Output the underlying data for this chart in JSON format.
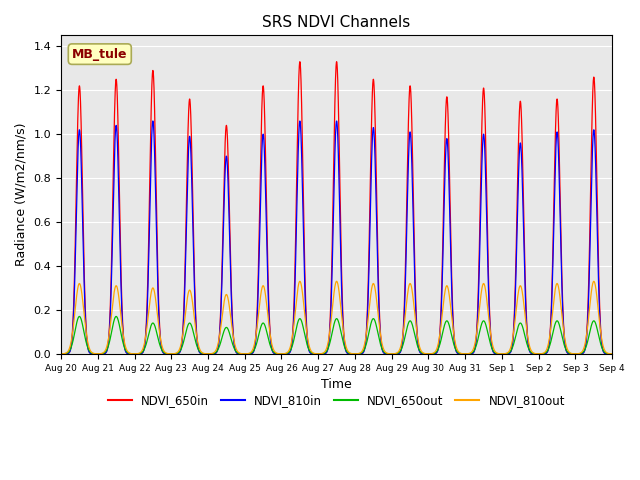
{
  "title": "SRS NDVI Channels",
  "xlabel": "Time",
  "ylabel": "Radiance (W/m2/nm/s)",
  "ylim": [
    0.0,
    1.45
  ],
  "yticks": [
    0.0,
    0.2,
    0.4,
    0.6,
    0.8,
    1.0,
    1.2,
    1.4
  ],
  "num_days": 16,
  "annotation_text": "MB_tule",
  "annotation_color": "#8B0000",
  "annotation_bg": "#FFFFC0",
  "colors": {
    "NDVI_650in": "#FF0000",
    "NDVI_810in": "#0000FF",
    "NDVI_650out": "#00BB00",
    "NDVI_810out": "#FFA500"
  },
  "peak_650in": [
    1.22,
    1.25,
    1.29,
    1.16,
    1.04,
    1.22,
    1.33,
    1.33,
    1.25,
    1.22,
    1.17,
    1.21,
    1.15,
    1.16,
    1.26
  ],
  "peak_810in": [
    1.02,
    1.04,
    1.06,
    0.99,
    0.9,
    1.0,
    1.06,
    1.06,
    1.03,
    1.01,
    0.98,
    1.0,
    0.96,
    1.01,
    1.02
  ],
  "peak_650out": [
    0.17,
    0.17,
    0.14,
    0.14,
    0.12,
    0.14,
    0.16,
    0.16,
    0.16,
    0.15,
    0.15,
    0.15,
    0.14,
    0.15,
    0.15
  ],
  "peak_810out": [
    0.32,
    0.31,
    0.3,
    0.29,
    0.27,
    0.31,
    0.33,
    0.33,
    0.32,
    0.32,
    0.31,
    0.32,
    0.31,
    0.32,
    0.33
  ],
  "background_color": "#E8E8E8",
  "grid_color": "#FFFFFF",
  "figure_bg": "#FFFFFF",
  "tick_labels": [
    "Aug 20",
    "Aug 21",
    "Aug 22",
    "Aug 23",
    "Aug 24",
    "Aug 25",
    "Aug 26",
    "Aug 27",
    "Aug 28",
    "Aug 29",
    "Aug 30",
    "Aug 31",
    "Sep 1",
    "Sep 2",
    "Sep 3",
    "Sep 4"
  ]
}
